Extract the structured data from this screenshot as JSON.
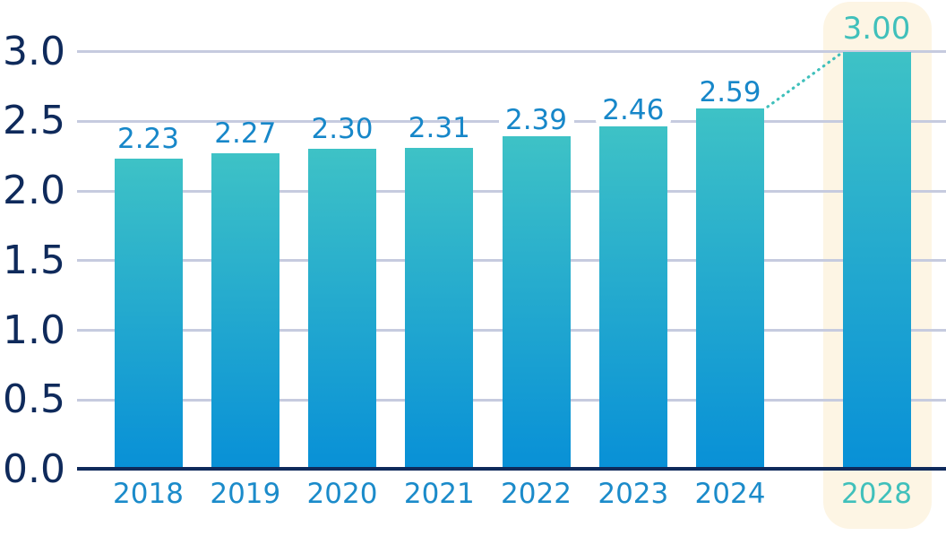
{
  "chart_data": {
    "type": "bar",
    "title": "",
    "xlabel": "",
    "ylabel": "",
    "ylim": [
      0,
      3.0
    ],
    "yticks": [
      "0.0",
      "0.5",
      "1.0",
      "1.5",
      "2.0",
      "2.5",
      "3.0"
    ],
    "grid": true,
    "legend": "none",
    "categories": [
      "2018",
      "2019",
      "2020",
      "2021",
      "2022",
      "2023",
      "2024",
      "2028"
    ],
    "values": [
      2.23,
      2.27,
      2.3,
      2.31,
      2.39,
      2.46,
      2.59,
      3.0
    ],
    "points": [
      {
        "category": "2018",
        "value": 2.23,
        "label": "2.23",
        "label_boxed": false,
        "highlighted": false
      },
      {
        "category": "2019",
        "value": 2.27,
        "label": "2.27",
        "label_boxed": false,
        "highlighted": false
      },
      {
        "category": "2020",
        "value": 2.3,
        "label": "2.30",
        "label_boxed": false,
        "highlighted": false
      },
      {
        "category": "2021",
        "value": 2.31,
        "label": "2.31",
        "label_boxed": false,
        "highlighted": false
      },
      {
        "category": "2022",
        "value": 2.39,
        "label": "2.39",
        "label_boxed": true,
        "highlighted": false
      },
      {
        "category": "2023",
        "value": 2.46,
        "label": "2.46",
        "label_boxed": true,
        "highlighted": false
      },
      {
        "category": "2024",
        "value": 2.59,
        "label": "2.59",
        "label_boxed": true,
        "highlighted": false
      },
      {
        "category": "2028",
        "value": 3.0,
        "label": "3.00",
        "label_boxed": false,
        "highlighted": true
      }
    ],
    "projection_connector": {
      "from": "2024",
      "to": "2028",
      "style": "dotted"
    }
  },
  "colors": {
    "bar_top": "#3ec2c6",
    "bar_bottom": "#0890d7",
    "axis_text": "#0f2a5b",
    "value_label": "#1787c9",
    "year_label": "#1b8bca",
    "highlight_bg": "#fdf5e4",
    "highlight_text": "#40c0bb",
    "gridline": "#c6cbdf",
    "axis_line": "#0f2a5b",
    "label_box_bg": "#ffffff"
  }
}
